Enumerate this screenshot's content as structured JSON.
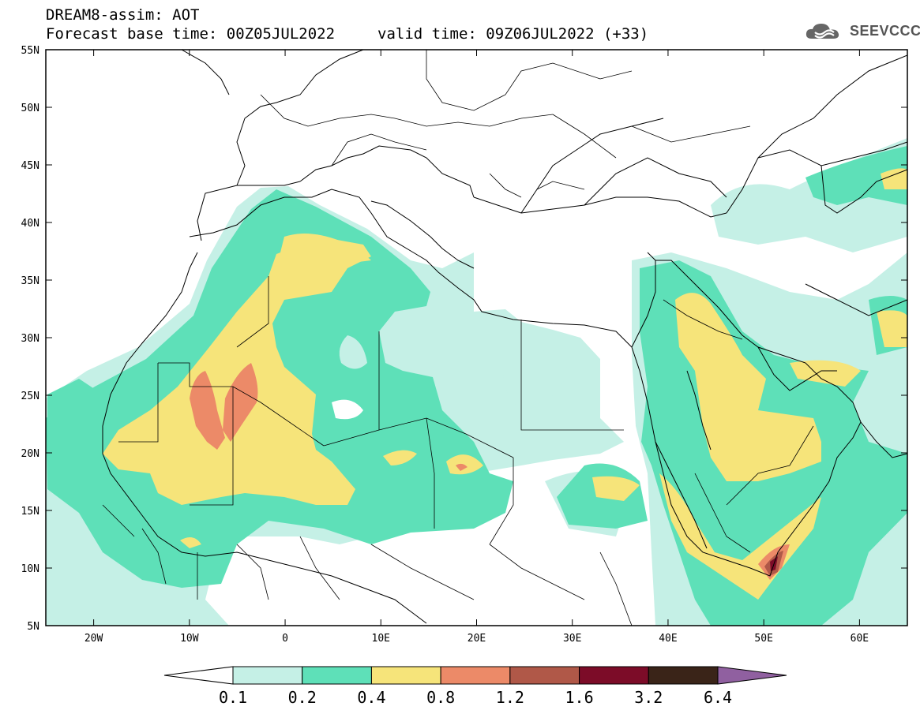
{
  "header": {
    "title": "DREAM8-assim: AOT",
    "base_time": "Forecast base time: 00Z05JUL2022",
    "valid_time": "valid time: 09Z06JUL2022 (+33)"
  },
  "logo": {
    "text": "SEEVCCC",
    "icon": "cloud-logo-icon"
  },
  "map": {
    "lat_labels": [
      "55N",
      "50N",
      "45N",
      "40N",
      "35N",
      "30N",
      "25N",
      "20N",
      "15N",
      "10N",
      "5N"
    ],
    "lon_labels": [
      "20W",
      "10W",
      "0",
      "10E",
      "20E",
      "30E",
      "40E",
      "50E",
      "60E"
    ]
  },
  "colorbar": {
    "labels": [
      "0.1",
      "0.2",
      "0.4",
      "0.8",
      "1.2",
      "1.6",
      "3.2",
      "6.4"
    ],
    "colors": [
      "#ffffff",
      "#c5f0e6",
      "#5ee0b8",
      "#f6e47a",
      "#ec8a68",
      "#b05848",
      "#7c0c28",
      "#3a2418",
      "#9060a0"
    ]
  },
  "palette": {
    "level1": "#c5f0e6",
    "level2": "#5ee0b8",
    "level3": "#f6e47a",
    "level4": "#ec8a68",
    "level5": "#b05848",
    "level6": "#7c0c28"
  }
}
